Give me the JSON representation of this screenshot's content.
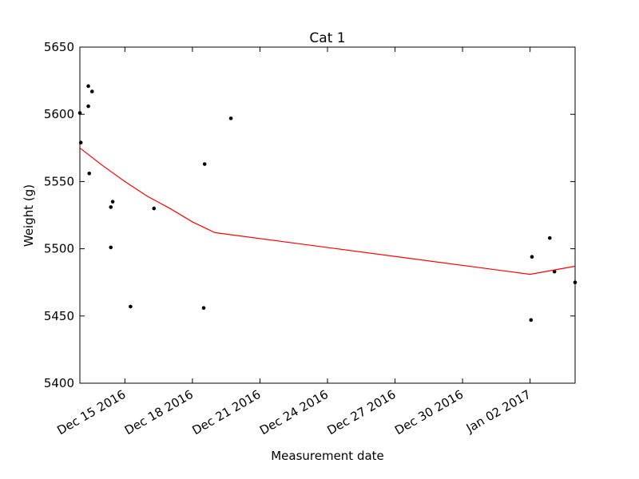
{
  "chart_data": {
    "type": "scatter",
    "title": "Cat 1",
    "xlabel": "Measurement date",
    "ylabel": "Weight (g)",
    "xlim": [
      "2016-12-13",
      "2017-01-04"
    ],
    "ylim": [
      5400,
      5650
    ],
    "x_ticks": [
      {
        "date": "2016-12-15",
        "label": "Dec 15 2016"
      },
      {
        "date": "2016-12-18",
        "label": "Dec 18 2016"
      },
      {
        "date": "2016-12-21",
        "label": "Dec 21 2016"
      },
      {
        "date": "2016-12-24",
        "label": "Dec 24 2016"
      },
      {
        "date": "2016-12-27",
        "label": "Dec 27 2016"
      },
      {
        "date": "2016-12-30",
        "label": "Dec 30 2016"
      },
      {
        "date": "2017-01-02",
        "label": "Jan 02 2017"
      }
    ],
    "y_ticks": [
      5400,
      5450,
      5500,
      5550,
      5600,
      5650
    ],
    "grid": false,
    "series": [
      {
        "kind": "points",
        "color": "#000000",
        "points": [
          {
            "x": "2016-12-13 00:00",
            "y": 5601
          },
          {
            "x": "2016-12-13 01:00",
            "y": 5579
          },
          {
            "x": "2016-12-13 09:00",
            "y": 5621
          },
          {
            "x": "2016-12-13 09:00",
            "y": 5606
          },
          {
            "x": "2016-12-13 10:00",
            "y": 5556
          },
          {
            "x": "2016-12-13 13:00",
            "y": 5617
          },
          {
            "x": "2016-12-14 09:00",
            "y": 5501
          },
          {
            "x": "2016-12-14 09:00",
            "y": 5531
          },
          {
            "x": "2016-12-14 11:00",
            "y": 5535
          },
          {
            "x": "2016-12-15 06:00",
            "y": 5457
          },
          {
            "x": "2016-12-16 07:00",
            "y": 5530
          },
          {
            "x": "2016-12-18 12:00",
            "y": 5456
          },
          {
            "x": "2016-12-18 13:00",
            "y": 5563
          },
          {
            "x": "2016-12-19 17:00",
            "y": 5597
          },
          {
            "x": "2017-01-02 01:00",
            "y": 5447
          },
          {
            "x": "2017-01-02 02:00",
            "y": 5494
          },
          {
            "x": "2017-01-02 21:00",
            "y": 5508
          },
          {
            "x": "2017-01-03 02:00",
            "y": 5483
          },
          {
            "x": "2017-01-04 00:00",
            "y": 5475
          }
        ]
      },
      {
        "kind": "line",
        "color": "#ff0000",
        "points": [
          {
            "x": "2016-12-13 00:00",
            "y": 5575
          },
          {
            "x": "2016-12-14 00:00",
            "y": 5562
          },
          {
            "x": "2016-12-15 00:00",
            "y": 5550
          },
          {
            "x": "2016-12-16 00:00",
            "y": 5539
          },
          {
            "x": "2016-12-17 00:00",
            "y": 5530
          },
          {
            "x": "2016-12-18 00:00",
            "y": 5520
          },
          {
            "x": "2016-12-19 00:00",
            "y": 5512
          },
          {
            "x": "2017-01-02 00:00",
            "y": 5481
          },
          {
            "x": "2017-01-04 00:00",
            "y": 5487
          }
        ]
      }
    ]
  }
}
